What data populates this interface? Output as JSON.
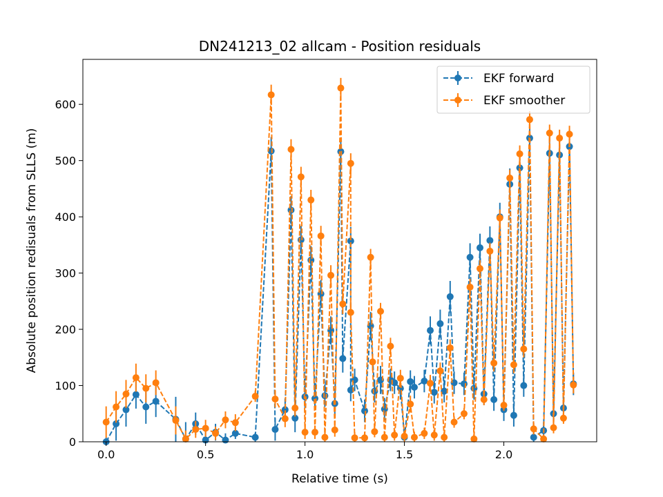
{
  "chart_data": {
    "type": "line",
    "title": "DN241213_02 allcam - Position residuals",
    "xlabel": "Relative time (s)",
    "ylabel": "Absolute position redisuals from SLLS (m)",
    "xlim": [
      -0.117,
      2.467
    ],
    "ylim": [
      0,
      680
    ],
    "xticks": [
      0.0,
      0.5,
      1.0,
      1.5,
      2.0
    ],
    "xtick_labels": [
      "0.0",
      "0.5",
      "1.0",
      "1.5",
      "2.0"
    ],
    "yticks": [
      0,
      100,
      200,
      300,
      400,
      500,
      600
    ],
    "ytick_labels": [
      "0",
      "100",
      "200",
      "300",
      "400",
      "500",
      "600"
    ],
    "grid": false,
    "legend_position": "top-right",
    "series": [
      {
        "name": "EKF forward",
        "color": "#1f77b4",
        "style": "dashed-with-markers-and-errorbars",
        "points": [
          [
            0.0,
            0,
            8
          ],
          [
            0.05,
            32,
            30
          ],
          [
            0.1,
            57,
            30
          ],
          [
            0.15,
            84,
            25
          ],
          [
            0.2,
            62,
            30
          ],
          [
            0.25,
            72,
            28
          ],
          [
            0.35,
            40,
            40
          ],
          [
            0.4,
            5,
            30
          ],
          [
            0.45,
            32,
            20
          ],
          [
            0.5,
            3,
            20
          ],
          [
            0.55,
            17,
            15
          ],
          [
            0.6,
            3,
            12
          ],
          [
            0.65,
            15,
            10
          ],
          [
            0.75,
            8,
            8
          ],
          [
            0.83,
            517,
            25
          ],
          [
            0.85,
            22,
            20
          ],
          [
            0.9,
            57,
            20
          ],
          [
            0.93,
            412,
            25
          ],
          [
            0.95,
            42,
            25
          ],
          [
            0.98,
            359,
            25
          ],
          [
            1.0,
            80,
            20
          ],
          [
            1.03,
            323,
            25
          ],
          [
            1.05,
            77,
            20
          ],
          [
            1.08,
            263,
            25
          ],
          [
            1.1,
            82,
            20
          ],
          [
            1.13,
            198,
            25
          ],
          [
            1.15,
            68,
            20
          ],
          [
            1.18,
            516,
            25
          ],
          [
            1.19,
            148,
            25
          ],
          [
            1.23,
            357,
            25
          ],
          [
            1.23,
            92,
            20
          ],
          [
            1.25,
            110,
            20
          ],
          [
            1.3,
            55,
            20
          ],
          [
            1.33,
            206,
            25
          ],
          [
            1.35,
            90,
            20
          ],
          [
            1.38,
            110,
            25
          ],
          [
            1.4,
            58,
            20
          ],
          [
            1.43,
            110,
            20
          ],
          [
            1.45,
            105,
            20
          ],
          [
            1.48,
            95,
            20
          ],
          [
            1.5,
            8,
            15
          ],
          [
            1.53,
            107,
            20
          ],
          [
            1.55,
            97,
            20
          ],
          [
            1.6,
            108,
            20
          ],
          [
            1.63,
            198,
            25
          ],
          [
            1.65,
            88,
            20
          ],
          [
            1.68,
            210,
            25
          ],
          [
            1.7,
            90,
            20
          ],
          [
            1.73,
            258,
            28
          ],
          [
            1.75,
            105,
            20
          ],
          [
            1.8,
            103,
            20
          ],
          [
            1.83,
            328,
            25
          ],
          [
            1.85,
            95,
            20
          ],
          [
            1.88,
            345,
            25
          ],
          [
            1.9,
            85,
            20
          ],
          [
            1.93,
            358,
            25
          ],
          [
            1.95,
            75,
            20
          ],
          [
            1.98,
            400,
            25
          ],
          [
            2.0,
            57,
            20
          ],
          [
            2.03,
            458,
            28
          ],
          [
            2.05,
            47,
            20
          ],
          [
            2.08,
            487,
            28
          ],
          [
            2.1,
            100,
            20
          ],
          [
            2.13,
            540,
            28
          ],
          [
            2.15,
            8,
            10
          ],
          [
            2.2,
            20,
            15
          ],
          [
            2.23,
            513,
            30
          ],
          [
            2.25,
            50,
            20
          ],
          [
            2.28,
            510,
            30
          ],
          [
            2.3,
            60,
            20
          ],
          [
            2.33,
            525,
            30
          ],
          [
            2.35,
            103,
            20
          ]
        ]
      },
      {
        "name": "EKF smoother",
        "color": "#ff7f0e",
        "style": "dashed-with-markers-and-errorbars",
        "points": [
          [
            0.0,
            35,
            28
          ],
          [
            0.05,
            62,
            28
          ],
          [
            0.1,
            85,
            25
          ],
          [
            0.15,
            114,
            25
          ],
          [
            0.2,
            95,
            25
          ],
          [
            0.25,
            105,
            22
          ],
          [
            0.35,
            38,
            25
          ],
          [
            0.4,
            5,
            15
          ],
          [
            0.45,
            22,
            15
          ],
          [
            0.5,
            24,
            15
          ],
          [
            0.55,
            15,
            12
          ],
          [
            0.6,
            39,
            15
          ],
          [
            0.65,
            34,
            15
          ],
          [
            0.75,
            81,
            10
          ],
          [
            0.83,
            617,
            18
          ],
          [
            0.85,
            76,
            15
          ],
          [
            0.9,
            41,
            15
          ],
          [
            0.93,
            520,
            18
          ],
          [
            0.95,
            60,
            15
          ],
          [
            0.98,
            471,
            18
          ],
          [
            1.0,
            17,
            12
          ],
          [
            1.03,
            430,
            18
          ],
          [
            1.05,
            17,
            12
          ],
          [
            1.08,
            366,
            18
          ],
          [
            1.1,
            8,
            10
          ],
          [
            1.13,
            296,
            18
          ],
          [
            1.15,
            21,
            12
          ],
          [
            1.18,
            629,
            18
          ],
          [
            1.19,
            245,
            18
          ],
          [
            1.23,
            495,
            18
          ],
          [
            1.23,
            230,
            18
          ],
          [
            1.25,
            7,
            10
          ],
          [
            1.3,
            7,
            10
          ],
          [
            1.33,
            328,
            15
          ],
          [
            1.34,
            142,
            15
          ],
          [
            1.35,
            18,
            10
          ],
          [
            1.38,
            232,
            15
          ],
          [
            1.4,
            8,
            10
          ],
          [
            1.43,
            170,
            15
          ],
          [
            1.45,
            12,
            10
          ],
          [
            1.48,
            113,
            15
          ],
          [
            1.5,
            10,
            10
          ],
          [
            1.53,
            67,
            15
          ],
          [
            1.55,
            8,
            10
          ],
          [
            1.6,
            15,
            10
          ],
          [
            1.63,
            104,
            15
          ],
          [
            1.65,
            12,
            10
          ],
          [
            1.68,
            126,
            15
          ],
          [
            1.7,
            8,
            10
          ],
          [
            1.73,
            167,
            15
          ],
          [
            1.75,
            35,
            10
          ],
          [
            1.8,
            50,
            10
          ],
          [
            1.83,
            275,
            15
          ],
          [
            1.85,
            5,
            10
          ],
          [
            1.88,
            308,
            15
          ],
          [
            1.9,
            75,
            10
          ],
          [
            1.93,
            339,
            15
          ],
          [
            1.95,
            140,
            15
          ],
          [
            1.98,
            398,
            15
          ],
          [
            2.0,
            65,
            10
          ],
          [
            2.03,
            469,
            15
          ],
          [
            2.05,
            137,
            15
          ],
          [
            2.08,
            512,
            15
          ],
          [
            2.1,
            165,
            15
          ],
          [
            2.13,
            573,
            15
          ],
          [
            2.15,
            23,
            10
          ],
          [
            2.2,
            5,
            8
          ],
          [
            2.23,
            549,
            15
          ],
          [
            2.25,
            25,
            10
          ],
          [
            2.28,
            540,
            15
          ],
          [
            2.3,
            42,
            10
          ],
          [
            2.33,
            547,
            15
          ],
          [
            2.35,
            101,
            15
          ]
        ]
      }
    ]
  }
}
